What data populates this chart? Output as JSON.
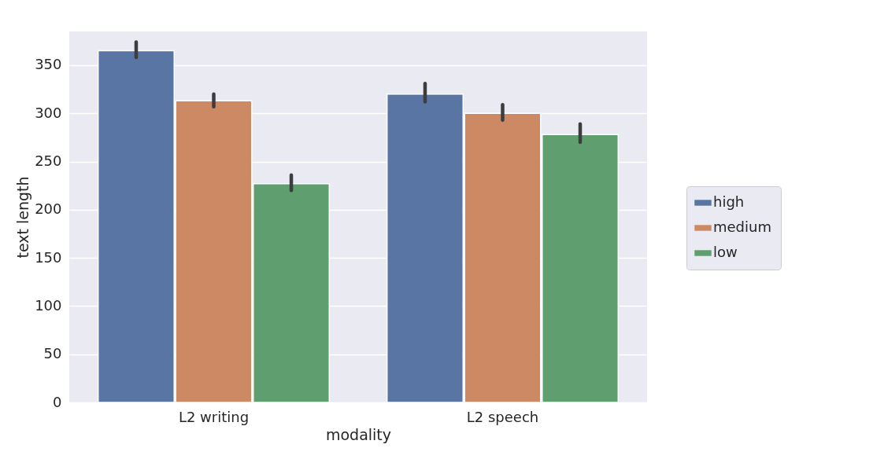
{
  "chart_data": {
    "type": "bar",
    "xlabel": "modality",
    "ylabel": "text length",
    "categories": [
      "L2 writing",
      "L2 speech"
    ],
    "series": [
      {
        "name": "high",
        "color": "#5875a4",
        "values": [
          365,
          320
        ],
        "errors": [
          [
            358,
            374
          ],
          [
            312,
            331
          ]
        ]
      },
      {
        "name": "medium",
        "color": "#cc8963",
        "values": [
          313,
          300
        ],
        "errors": [
          [
            307,
            320
          ],
          [
            293,
            309
          ]
        ]
      },
      {
        "name": "low",
        "color": "#5f9e6e",
        "values": [
          227,
          278
        ],
        "errors": [
          [
            220,
            236
          ],
          [
            270,
            289
          ]
        ]
      }
    ],
    "ylim": [
      0,
      385
    ],
    "yticks": [
      0,
      50,
      100,
      150,
      200,
      250,
      300,
      350
    ],
    "grid": "y",
    "legend": "right"
  }
}
